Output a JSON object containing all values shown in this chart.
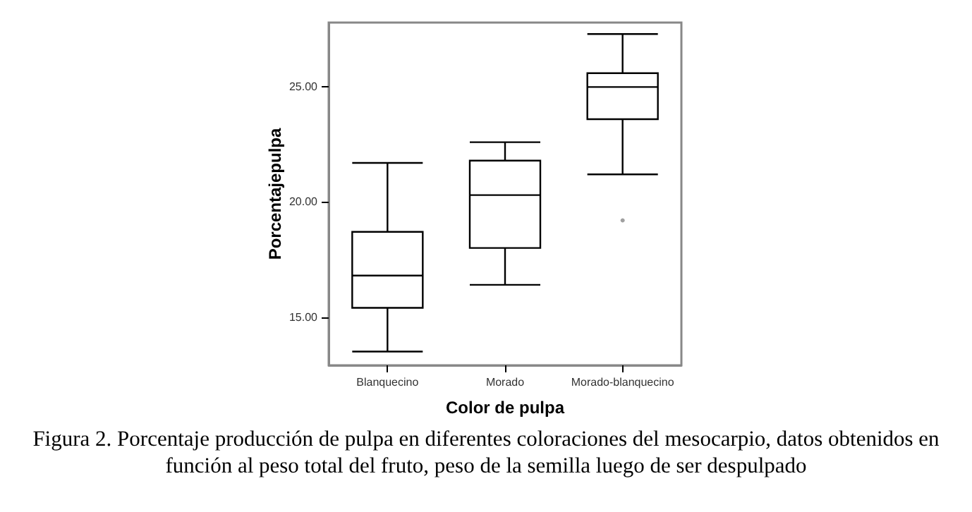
{
  "chart_data": {
    "type": "box",
    "xlabel": "Color de pulpa",
    "ylabel": "Porcentajepulpa",
    "categories": [
      "Blanquecino",
      "Morado",
      "Morado-blanquecino"
    ],
    "boxes": [
      {
        "low": 13.5,
        "q1": 15.4,
        "median": 16.8,
        "q3": 18.7,
        "high": 21.7
      },
      {
        "low": 16.4,
        "q1": 18.0,
        "median": 20.3,
        "q3": 21.8,
        "high": 22.6
      },
      {
        "low": 21.2,
        "q1": 23.6,
        "median": 25.0,
        "q3": 25.6,
        "high": 27.3,
        "outliers": [
          19.2
        ]
      }
    ],
    "color": "#000000",
    "ylim": [
      12.9,
      27.8
    ],
    "yticks": [
      {
        "value": 15,
        "label": "15.00"
      },
      {
        "value": 20,
        "label": "20.00"
      },
      {
        "value": 25,
        "label": "25.00"
      }
    ],
    "grid": false,
    "annotations": [
      "Figura  2. Porcentaje producción de pulpa en diferentes coloraciones del mesocarpio, datos obtenidos en función al peso total del fruto, peso de la semilla luego de ser despulpado"
    ]
  }
}
